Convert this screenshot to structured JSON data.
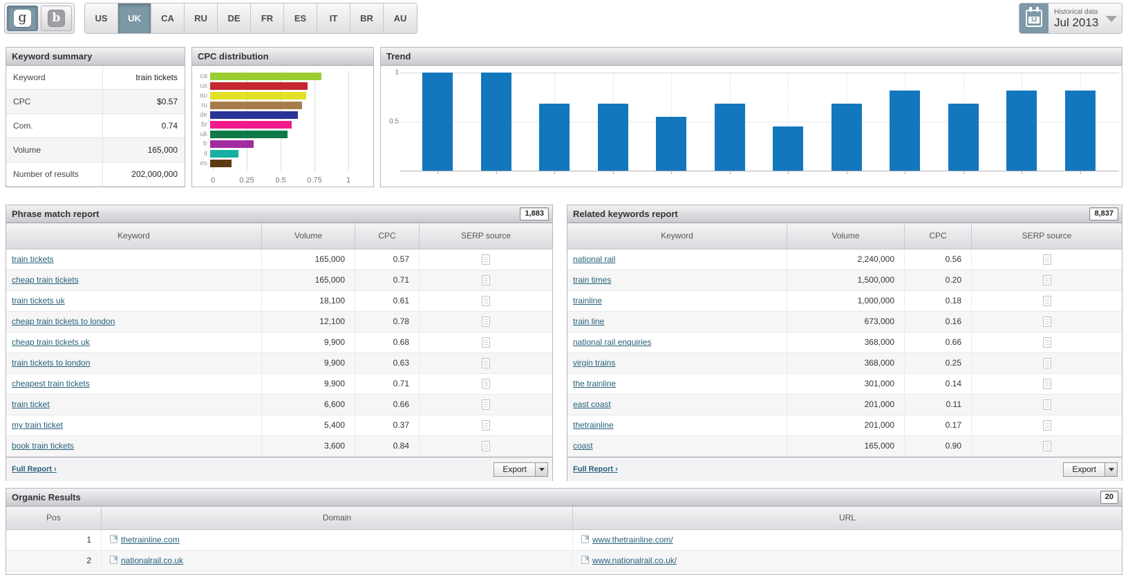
{
  "topbar": {
    "engines": [
      {
        "name": "google",
        "label": "g",
        "selected": true
      },
      {
        "name": "bing",
        "label": "b",
        "selected": false
      }
    ],
    "countries": [
      "US",
      "UK",
      "CA",
      "RU",
      "DE",
      "FR",
      "ES",
      "IT",
      "BR",
      "AU"
    ],
    "selected_country": "UK",
    "historical": {
      "label": "Historical data",
      "value": "Jul 2013",
      "calendar_day": "12"
    }
  },
  "keyword_summary": {
    "title": "Keyword summary",
    "rows": [
      {
        "label": "Keyword",
        "value": "train tickets"
      },
      {
        "label": "CPC",
        "value": "$0.57"
      },
      {
        "label": "Com.",
        "value": "0.74"
      },
      {
        "label": "Volume",
        "value": "165,000"
      },
      {
        "label": "Number of results",
        "value": "202,000,000"
      }
    ]
  },
  "chart_data": [
    {
      "type": "bar",
      "orientation": "horizontal",
      "title": "CPC distribution",
      "categories": [
        "ca",
        "us",
        "au",
        "ru",
        "de",
        "br",
        "uk",
        "fr",
        "it",
        "es"
      ],
      "values": [
        0.82,
        0.72,
        0.71,
        0.68,
        0.65,
        0.6,
        0.57,
        0.32,
        0.21,
        0.16
      ],
      "colors": [
        "#9acd32",
        "#c6262e",
        "#e3e028",
        "#a57d4b",
        "#2c3396",
        "#f01a8c",
        "#0f7a48",
        "#a22aa2",
        "#17b0a2",
        "#5d3a12"
      ],
      "xticks": [
        "0",
        "0.25",
        "0.5",
        "0.75",
        "1"
      ],
      "xlim": [
        0,
        1
      ],
      "grid": true
    },
    {
      "type": "bar",
      "title": "Trend",
      "values": [
        1,
        1,
        0.68,
        0.68,
        0.55,
        0.68,
        0.45,
        0.68,
        0.82,
        0.68,
        0.82,
        0.82
      ],
      "yticks": [
        "1",
        "0.5"
      ],
      "ytick_values": [
        1,
        0.5
      ],
      "ylim": [
        0,
        1
      ],
      "color": "#1377be",
      "xlabel": "",
      "ylabel": ""
    }
  ],
  "phrase_match": {
    "title": "Phrase match report",
    "badge": "1,883",
    "columns": [
      "Keyword",
      "Volume",
      "CPC",
      "SERP source"
    ],
    "rows": [
      {
        "keyword": "train tickets",
        "volume": "165,000",
        "cpc": "0.57"
      },
      {
        "keyword": "cheap train tickets",
        "volume": "165,000",
        "cpc": "0.71"
      },
      {
        "keyword": "train tickets uk",
        "volume": "18,100",
        "cpc": "0.61"
      },
      {
        "keyword": "cheap train tickets to london",
        "volume": "12,100",
        "cpc": "0.78"
      },
      {
        "keyword": "cheap train tickets uk",
        "volume": "9,900",
        "cpc": "0.68"
      },
      {
        "keyword": "train tickets to london",
        "volume": "9,900",
        "cpc": "0.63"
      },
      {
        "keyword": "cheapest train tickets",
        "volume": "9,900",
        "cpc": "0.71"
      },
      {
        "keyword": "train ticket",
        "volume": "6,600",
        "cpc": "0.66"
      },
      {
        "keyword": "my train ticket",
        "volume": "5,400",
        "cpc": "0.37"
      },
      {
        "keyword": "book train tickets",
        "volume": "3,600",
        "cpc": "0.84"
      }
    ],
    "full_report_label": "Full Report ›",
    "export_label": "Export"
  },
  "related_keywords": {
    "title": "Related keywords report",
    "badge": "8,837",
    "columns": [
      "Keyword",
      "Volume",
      "CPC",
      "SERP source"
    ],
    "rows": [
      {
        "keyword": "national rail",
        "volume": "2,240,000",
        "cpc": "0.56"
      },
      {
        "keyword": "train times",
        "volume": "1,500,000",
        "cpc": "0.20"
      },
      {
        "keyword": "trainline",
        "volume": "1,000,000",
        "cpc": "0.18"
      },
      {
        "keyword": "train line",
        "volume": "673,000",
        "cpc": "0.16"
      },
      {
        "keyword": "national rail enquiries",
        "volume": "368,000",
        "cpc": "0.66"
      },
      {
        "keyword": "virgin trains",
        "volume": "368,000",
        "cpc": "0.25"
      },
      {
        "keyword": "the trainline",
        "volume": "301,000",
        "cpc": "0.14"
      },
      {
        "keyword": "east coast",
        "volume": "201,000",
        "cpc": "0.11"
      },
      {
        "keyword": "thetrainline",
        "volume": "201,000",
        "cpc": "0.17"
      },
      {
        "keyword": "coast",
        "volume": "165,000",
        "cpc": "0.90"
      }
    ],
    "full_report_label": "Full Report ›",
    "export_label": "Export"
  },
  "organic": {
    "title": "Organic Results",
    "badge": "20",
    "columns": [
      "Pos",
      "Domain",
      "URL"
    ],
    "rows": [
      {
        "pos": "1",
        "domain": "thetrainline.com",
        "url": "www.thetrainline.com/"
      },
      {
        "pos": "2",
        "domain": "nationalrail.co.uk",
        "url": "www.nationalrail.co.uk/"
      }
    ]
  }
}
